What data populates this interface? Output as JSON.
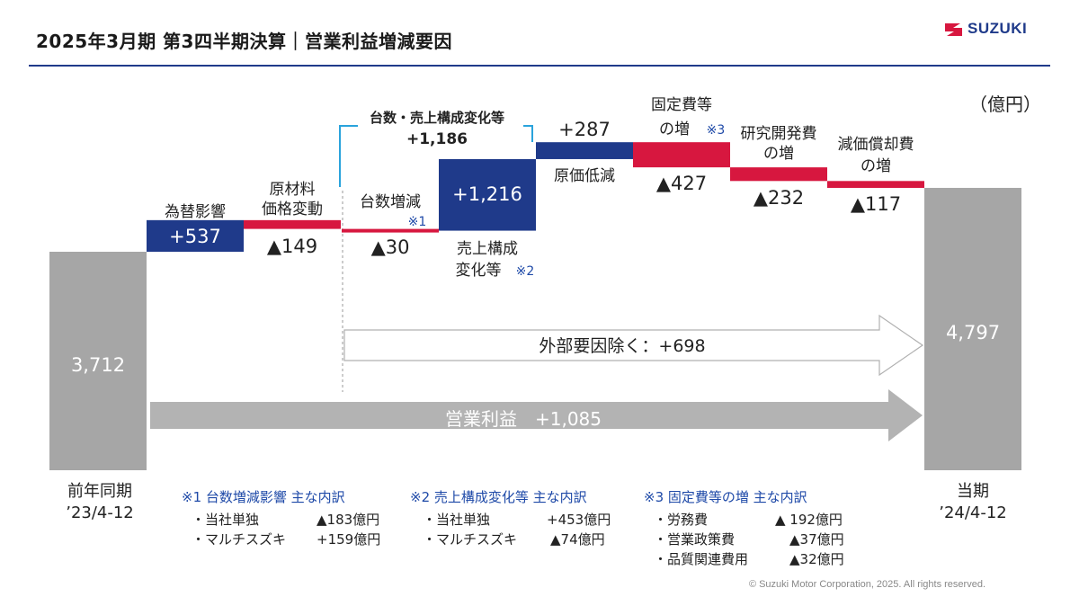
{
  "header": {
    "title": "2025年3月期 第3四半期決算｜営業利益増減要因",
    "brand": "SUZUKI"
  },
  "unit": "（億円）",
  "chart_data": {
    "type": "waterfall",
    "unit": "億円",
    "start": {
      "label": "3,712",
      "value": 3712,
      "period_line1": "前年同期",
      "period_line2": "’23/4-12"
    },
    "end": {
      "label": "4,797",
      "value": 4797,
      "period_line1": "当期",
      "period_line2": "’24/4-12"
    },
    "steps": [
      {
        "name_line1": "為替影響",
        "name_line2": "",
        "label": "+537",
        "value": 537,
        "direction": "increase"
      },
      {
        "name_line1": "原材料",
        "name_line2": "価格変動",
        "label": "▲149",
        "value": -149,
        "direction": "decrease"
      },
      {
        "name_line1": "台数増減",
        "name_line2": "",
        "note": "※1",
        "label": "▲30",
        "value": -30,
        "direction": "decrease"
      },
      {
        "name_line1": "売上構成",
        "name_line2": "変化等",
        "note": "※2",
        "label": "+1,216",
        "value": 1216,
        "direction": "increase"
      },
      {
        "name_line1": "原価低減",
        "name_line2": "",
        "label": "+287",
        "value": 287,
        "direction": "increase"
      },
      {
        "name_line1": "固定費等",
        "name_line2": "の増",
        "note": "※3",
        "label": "▲427",
        "value": -427,
        "direction": "decrease"
      },
      {
        "name_line1": "研究開発費",
        "name_line2": "の増",
        "label": "▲232",
        "value": -232,
        "direction": "decrease"
      },
      {
        "name_line1": "減価償却費",
        "name_line2": "の増",
        "label": "▲117",
        "value": -117,
        "direction": "decrease"
      }
    ],
    "group_bracket": {
      "label_line1": "台数・売上構成変化等",
      "label_line2": "+1,186",
      "value": 1186
    },
    "arrow_external": {
      "label": "外部要因除く：+698",
      "value": 698
    },
    "arrow_total": {
      "label": "営業利益　+1,085",
      "value": 1085
    },
    "colors": {
      "total": "#a6a6a6",
      "increase": "#1f3a8a",
      "decrease": "#d7173f",
      "bracket": "#2aa3dc"
    }
  },
  "footnotes": [
    {
      "heading": "※1 台数増減影響 主な内訳",
      "rows": [
        {
          "item": "・当社単独",
          "value": "▲183億円"
        },
        {
          "item": "・マルチスズキ",
          "value": "+159億円"
        }
      ]
    },
    {
      "heading": "※2 売上構成変化等 主な内訳",
      "rows": [
        {
          "item": "・当社単独",
          "value": "+453億円"
        },
        {
          "item": "・マルチスズキ",
          "value": "▲74億円"
        }
      ]
    },
    {
      "heading": "※3 固定費等の増 主な内訳",
      "rows": [
        {
          "item": "・労務費",
          "value": "▲ 192億円"
        },
        {
          "item": "・営業政策費",
          "value": "▲37億円"
        },
        {
          "item": "・品質関連費用",
          "value": "▲32億円"
        }
      ]
    }
  ],
  "copyright": "© Suzuki Motor Corporation, 2025. All rights reserved."
}
